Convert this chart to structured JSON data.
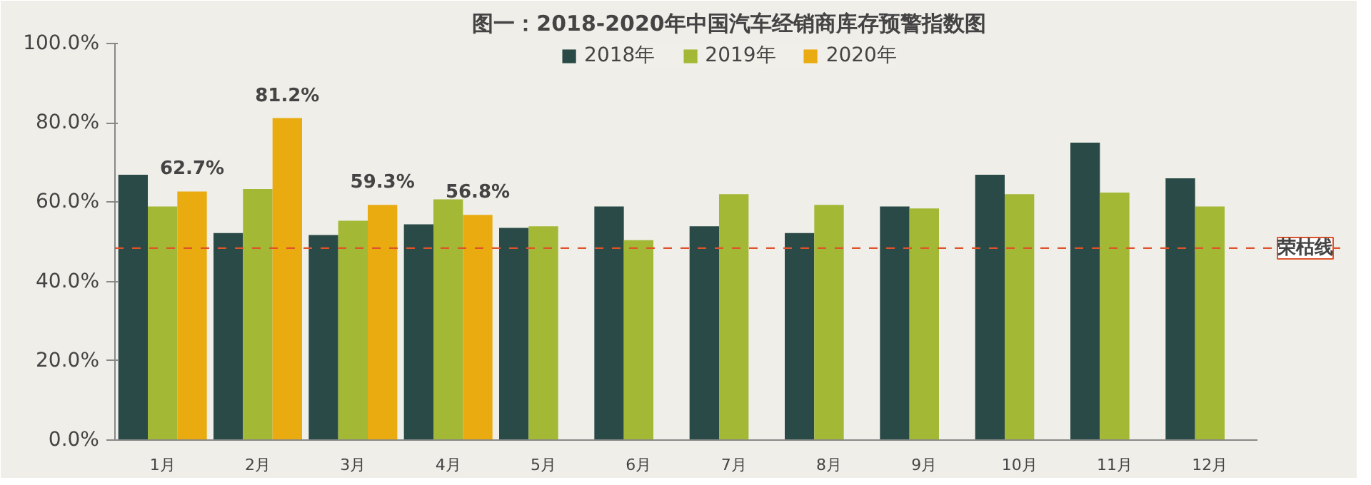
{
  "chart_data": {
    "type": "bar",
    "title": "图一：2018-2020年中国汽车经销商库存预警指数图",
    "categories": [
      "1月",
      "2月",
      "3月",
      "4月",
      "5月",
      "6月",
      "7月",
      "8月",
      "9月",
      "10月",
      "11月",
      "12月"
    ],
    "series": [
      {
        "name": "2018年",
        "color": "#2a4a47",
        "values": [
          66.9,
          52.2,
          51.7,
          54.4,
          53.5,
          58.9,
          53.9,
          52.2,
          58.9,
          66.9,
          75.0,
          66.0
        ]
      },
      {
        "name": "2019年",
        "color": "#a3b834",
        "values": [
          58.9,
          63.3,
          55.3,
          60.7,
          53.9,
          50.4,
          62.0,
          59.3,
          58.4,
          62.0,
          62.4,
          58.9
        ]
      },
      {
        "name": "2020年",
        "color": "#e9ab10",
        "values": [
          62.7,
          81.2,
          59.3,
          56.8,
          null,
          null,
          null,
          null,
          null,
          null,
          null,
          null
        ],
        "value_labels": [
          "62.7%",
          "81.2%",
          "59.3%",
          "56.8%",
          null,
          null,
          null,
          null,
          null,
          null,
          null,
          null
        ]
      }
    ],
    "ylim": [
      0,
      100
    ],
    "yticks": [
      {
        "value": 0,
        "label": "0.0%"
      },
      {
        "value": 20,
        "label": "20.0%"
      },
      {
        "value": 40,
        "label": "40.0%"
      },
      {
        "value": 60,
        "label": "60.0%"
      },
      {
        "value": 80,
        "label": "80.0%"
      },
      {
        "value": 100,
        "label": "100.0%"
      }
    ],
    "ref_lines": [
      {
        "axis": "y",
        "value": 48.4,
        "label": "荣枯线",
        "color": "#e0522a",
        "line_style": "dashed"
      }
    ],
    "legend": "top",
    "grid": false
  }
}
